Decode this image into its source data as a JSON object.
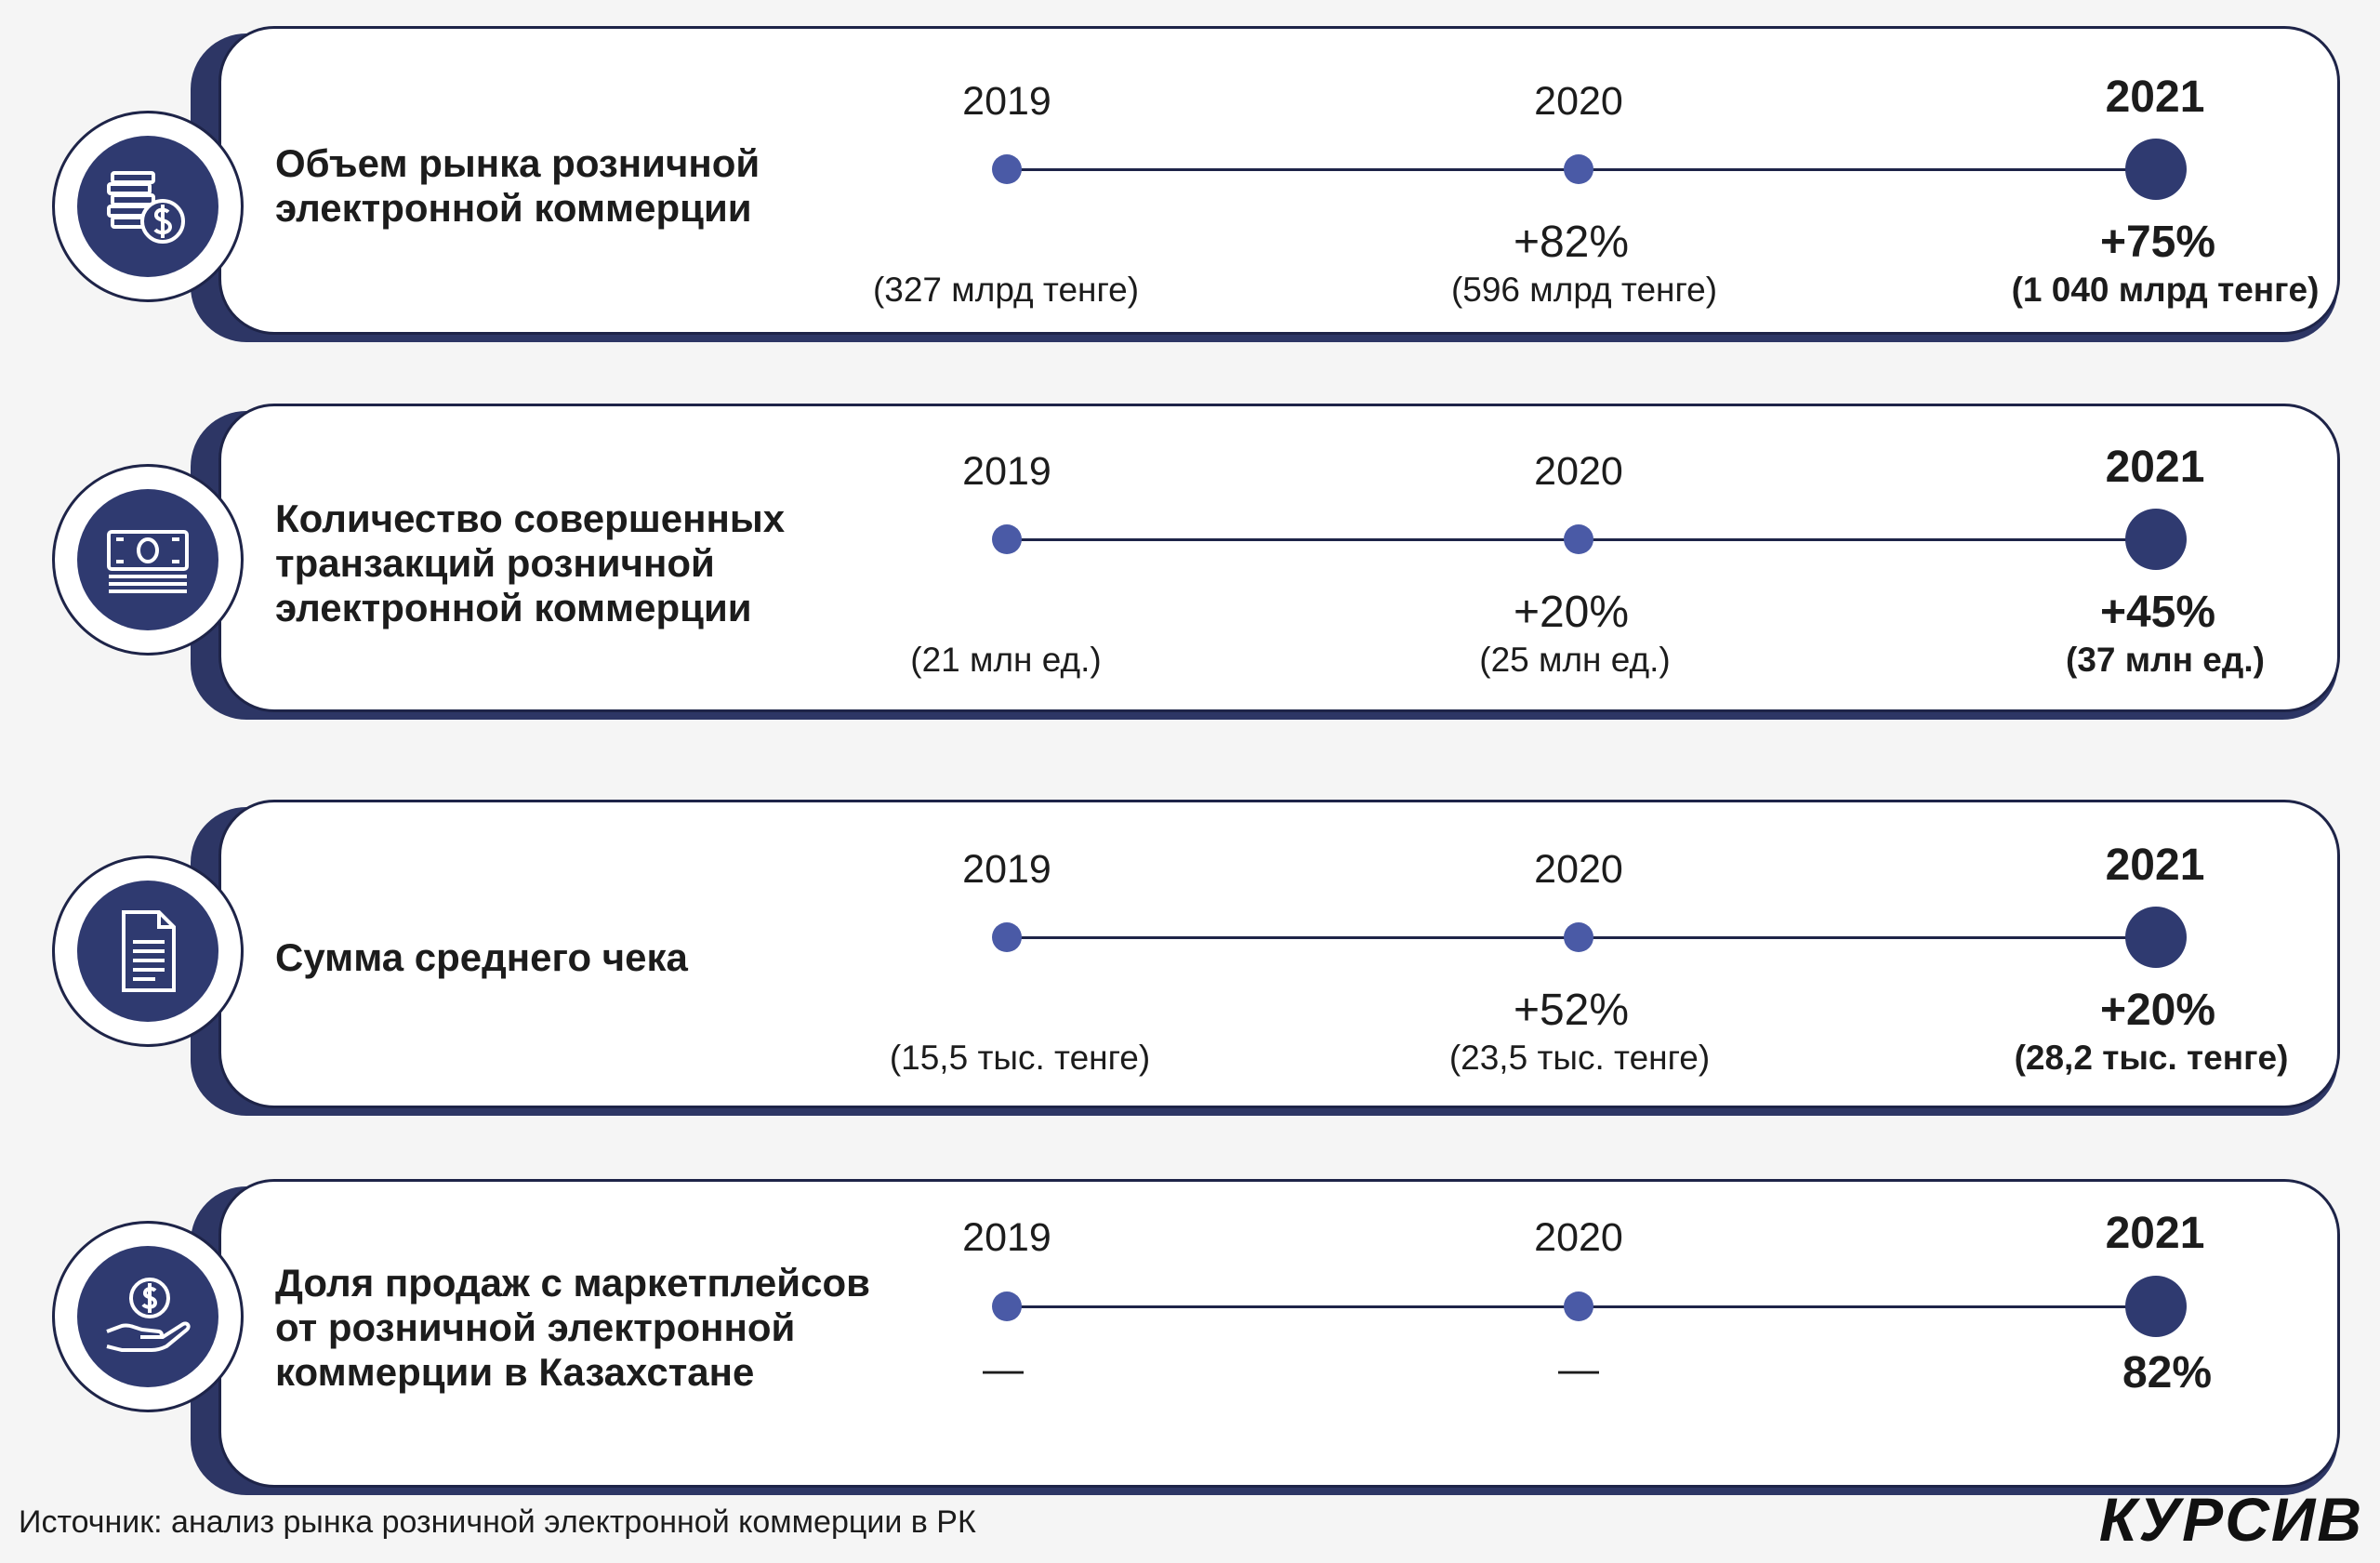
{
  "chart_data": {
    "type": "table",
    "years": [
      "2019",
      "2020",
      "2021"
    ],
    "metrics": [
      {
        "title": "Объем рынка розничной\nэлектронной коммерции",
        "icon": "coins-dollar-icon",
        "values": [
          "(327 млрд тенге)",
          "(596 млрд тенге)",
          "(1 040 млрд тенге)"
        ],
        "growth": [
          "",
          "+82%",
          "+75%"
        ]
      },
      {
        "title": "Количество совершенных\nтранзакций розничной\nэлектронной коммерции",
        "icon": "banknote-icon",
        "values": [
          "(21 млн ед.)",
          "(25 млн ед.)",
          "(37 млн ед.)"
        ],
        "growth": [
          "",
          "+20%",
          "+45%"
        ]
      },
      {
        "title": "Сумма среднего чека",
        "icon": "document-icon",
        "values": [
          "(15,5 тыс. тенге)",
          "(23,5 тыс. тенге)",
          "(28,2 тыс. тенге)"
        ],
        "growth": [
          "",
          "+52%",
          "+20%"
        ]
      },
      {
        "title": "Доля продаж с маркетплейсов\nот розничной электронной\nкоммерции в Казахстане",
        "icon": "hand-coin-icon",
        "values": [
          "—",
          "—",
          "82%"
        ],
        "growth": [
          "",
          "",
          ""
        ]
      }
    ]
  },
  "source": "Источник: анализ рынка розничной электронной коммерции в РК",
  "logo": "КУРСИВ",
  "colors": {
    "navy": "#2f3a70",
    "dot": "#4a5aa6",
    "border": "#1e2448"
  }
}
